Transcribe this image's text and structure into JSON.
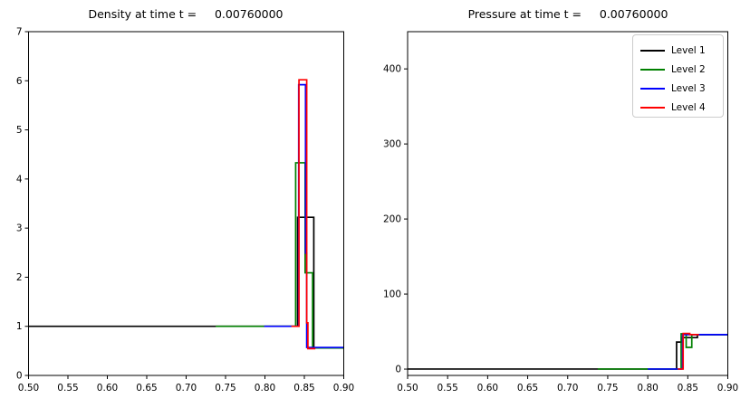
{
  "figure": {
    "background": "#ffffff",
    "description": "Two-panel line figure of density and pressure profiles at four AMR levels"
  },
  "legend": {
    "show": true,
    "position": "upper right",
    "entries": [
      {
        "label": "Level 1",
        "color": "#000000"
      },
      {
        "label": "Level 2",
        "color": "#008000"
      },
      {
        "label": "Level 3",
        "color": "#0000ff"
      },
      {
        "label": "Level 4",
        "color": "#ff0000"
      }
    ]
  },
  "chart_data": [
    {
      "name": "density",
      "type": "line",
      "title": "Density at time t =     0.00760000",
      "xlabel": "",
      "ylabel": "",
      "xlim": [
        0.5,
        0.9
      ],
      "ylim": [
        0,
        7
      ],
      "xticks": [
        0.5,
        0.55,
        0.6,
        0.65,
        0.7,
        0.75,
        0.8,
        0.85,
        0.9
      ],
      "xtick_labels": [
        "0.50",
        "0.55",
        "0.60",
        "0.65",
        "0.70",
        "0.75",
        "0.80",
        "0.85",
        "0.90"
      ],
      "yticks": [
        0,
        1,
        2,
        3,
        4,
        5,
        6,
        7
      ],
      "ytick_labels": [
        "0",
        "1",
        "2",
        "3",
        "4",
        "5",
        "6",
        "7"
      ],
      "grid": false,
      "legend_show": false,
      "series": [
        {
          "name": "Level 1",
          "color": "#000000",
          "points": [
            [
              0.5,
              1.0
            ],
            [
              0.8415,
              1.0
            ],
            [
              0.8415,
              3.22
            ],
            [
              0.862,
              3.22
            ],
            [
              0.862,
              0.56
            ],
            [
              0.9,
              0.56
            ]
          ]
        },
        {
          "name": "Level 2",
          "color": "#008000",
          "points": [
            [
              0.7375,
              1.0
            ],
            [
              0.839,
              1.0
            ],
            [
              0.839,
              4.33
            ],
            [
              0.851,
              4.33
            ],
            [
              0.851,
              2.09
            ],
            [
              0.8605,
              2.09
            ],
            [
              0.8605,
              0.56
            ],
            [
              0.9,
              0.56
            ]
          ]
        },
        {
          "name": "Level 3",
          "color": "#0000ff",
          "points": [
            [
              0.799,
              1.0
            ],
            [
              0.8428,
              1.0
            ],
            [
              0.8428,
              5.92
            ],
            [
              0.8515,
              5.92
            ],
            [
              0.8515,
              2.49
            ],
            [
              0.853,
              2.49
            ],
            [
              0.853,
              0.57
            ],
            [
              0.9,
              0.57
            ]
          ]
        },
        {
          "name": "Level 4",
          "color": "#ff0000",
          "points": [
            [
              0.8335,
              1.0
            ],
            [
              0.8432,
              1.0
            ],
            [
              0.8432,
              6.02
            ],
            [
              0.853,
              6.02
            ],
            [
              0.853,
              1.07
            ],
            [
              0.8545,
              1.07
            ],
            [
              0.8545,
              0.545
            ],
            [
              0.864,
              0.545
            ]
          ]
        }
      ]
    },
    {
      "name": "pressure",
      "type": "line",
      "title": "Pressure at time t =     0.00760000",
      "xlabel": "",
      "ylabel": "",
      "xlim": [
        0.5,
        0.9
      ],
      "ylim": [
        -8.4,
        449.6
      ],
      "xticks": [
        0.5,
        0.55,
        0.6,
        0.65,
        0.7,
        0.75,
        0.8,
        0.85,
        0.9
      ],
      "xtick_labels": [
        "0.50",
        "0.55",
        "0.60",
        "0.65",
        "0.70",
        "0.75",
        "0.80",
        "0.85",
        "0.90"
      ],
      "yticks": [
        0,
        100,
        200,
        300,
        400
      ],
      "ytick_labels": [
        "0",
        "100",
        "200",
        "300",
        "400"
      ],
      "grid": false,
      "legend_show": true,
      "series": [
        {
          "name": "Level 1",
          "color": "#000000",
          "points": [
            [
              0.5,
              0.1
            ],
            [
              0.836,
              0.1
            ],
            [
              0.836,
              36
            ],
            [
              0.842,
              36
            ],
            [
              0.842,
              42
            ],
            [
              0.862,
              42
            ],
            [
              0.862,
              46
            ],
            [
              0.9,
              46
            ]
          ]
        },
        {
          "name": "Level 2",
          "color": "#008000",
          "points": [
            [
              0.7375,
              0.1
            ],
            [
              0.8417,
              0.1
            ],
            [
              0.8417,
              47
            ],
            [
              0.848,
              47
            ],
            [
              0.848,
              29
            ],
            [
              0.855,
              29
            ],
            [
              0.855,
              46
            ],
            [
              0.9,
              46
            ]
          ]
        },
        {
          "name": "Level 3",
          "color": "#0000ff",
          "points": [
            [
              0.8,
              0.1
            ],
            [
              0.8435,
              0.1
            ],
            [
              0.8435,
              46
            ],
            [
              0.9,
              46
            ]
          ]
        },
        {
          "name": "Level 4",
          "color": "#ff0000",
          "points": [
            [
              0.8375,
              0.1
            ],
            [
              0.8442,
              0.1
            ],
            [
              0.8442,
              47.5
            ],
            [
              0.8525,
              47.5
            ],
            [
              0.8525,
              46
            ],
            [
              0.864,
              46
            ]
          ]
        }
      ]
    }
  ]
}
